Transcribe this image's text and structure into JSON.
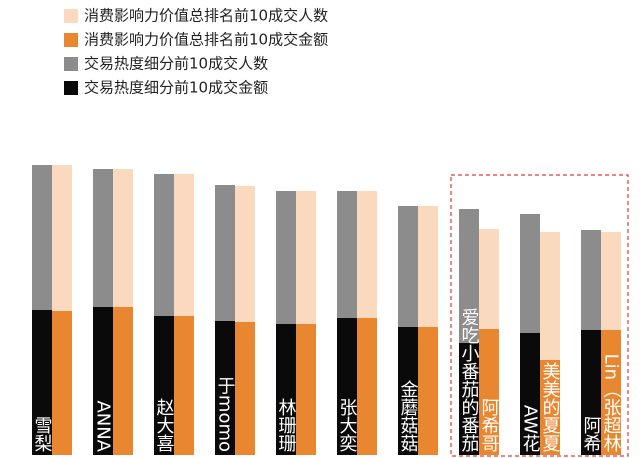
{
  "chart_data": {
    "type": "grouped-stacked-bar",
    "categories": [
      "雪梨",
      "ANNA",
      "赵大喜",
      "于momo",
      "林珊珊",
      "张大奕",
      "金蘑菇菇",
      "爱吃小番茄的番茄",
      "AW花",
      "阿希"
    ],
    "secondary_labels": [
      null,
      null,
      null,
      null,
      null,
      null,
      null,
      "阿希哥",
      "美美的夏夏",
      "Lin（张超林"
    ],
    "series": [
      {
        "name": "交易热度细分前10成交金额",
        "color": "#0a0a0a",
        "stack": "left",
        "values": [
          145,
          148,
          139,
          134,
          131,
          137,
          128,
          112,
          122,
          125
        ]
      },
      {
        "name": "交易热度细分前10成交人数",
        "color": "#8c8c8c",
        "stack": "left",
        "values": [
          145,
          138,
          142,
          136,
          133,
          127,
          121,
          134,
          119,
          100
        ]
      },
      {
        "name": "消费影响力价值总排名前10成交金额",
        "color": "#e8872f",
        "stack": "right",
        "values": [
          144,
          148,
          139,
          133,
          131,
          137,
          128,
          126,
          95,
          125
        ]
      },
      {
        "name": "消费影响力价值总排名前10成交人数",
        "color": "#fbd9bf",
        "stack": "right",
        "values": [
          146,
          138,
          142,
          136,
          133,
          127,
          121,
          100,
          128,
          98
        ]
      }
    ],
    "ylim": [
      0,
      300
    ]
  }
}
